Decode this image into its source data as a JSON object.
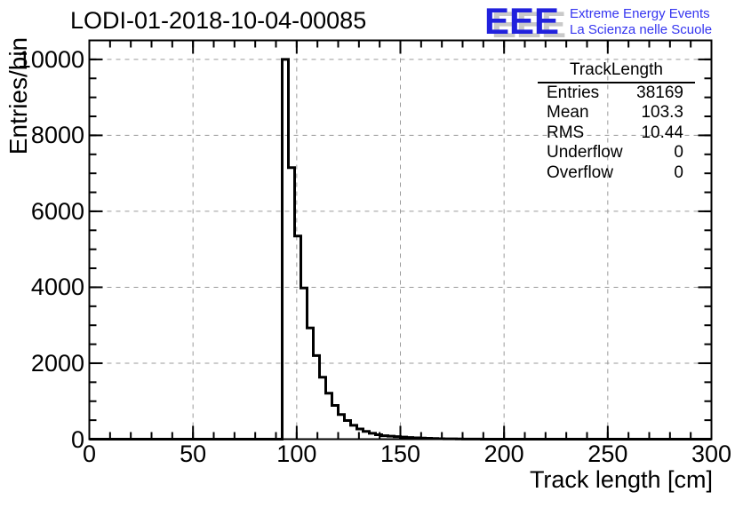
{
  "title": "LODI-01-2018-10-04-00085",
  "logo": {
    "letters": "EEE",
    "line1": "Extreme Energy Events",
    "line2": "La Scienza nelle Scuole",
    "blue": "#2121dd",
    "shadow_gray": "#c9c9c9"
  },
  "stats": {
    "title": "TrackLength",
    "rows": [
      {
        "label": "Entries",
        "value": "38169"
      },
      {
        "label": "Mean",
        "value": "103.3"
      },
      {
        "label": "RMS",
        "value": "10.44"
      },
      {
        "label": "Underflow",
        "value": "0"
      },
      {
        "label": "Overflow",
        "value": "0"
      }
    ]
  },
  "chart_data": {
    "type": "bar",
    "style": "step-histogram",
    "title": "LODI-01-2018-10-04-00085",
    "xlabel": "Track length [cm]",
    "ylabel": "Entries/bin",
    "xlim": [
      0,
      300
    ],
    "ylim": [
      0,
      10500
    ],
    "x_major_ticks": [
      0,
      50,
      100,
      150,
      200,
      250,
      300
    ],
    "x_minor_step": 10,
    "y_major_ticks": [
      0,
      2000,
      4000,
      6000,
      8000,
      10000
    ],
    "y_minor_step": 500,
    "grid": "dashed gray lines at major ticks, both axes",
    "legend": "none",
    "bin_start": 93,
    "bin_width": 3,
    "counts": [
      10000,
      7150,
      5350,
      3980,
      2930,
      2200,
      1630,
      1210,
      890,
      650,
      490,
      365,
      270,
      205,
      155,
      118,
      92,
      78,
      68,
      55,
      45,
      36,
      28,
      22,
      17,
      13,
      10,
      8,
      6,
      4,
      3,
      2
    ],
    "line_color": "#000000",
    "grid_color": "#9a9a9a"
  }
}
